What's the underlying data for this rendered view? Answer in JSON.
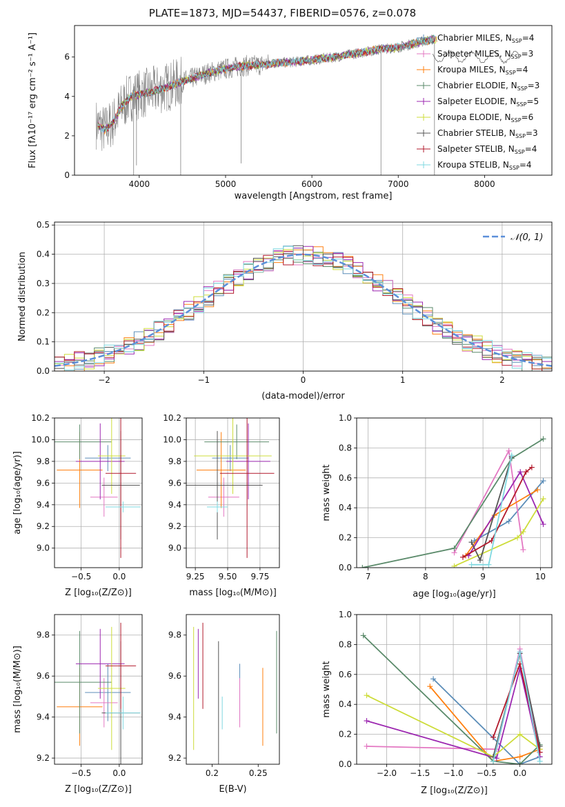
{
  "figure": {
    "title": "PLATE=1873, MJD=54437, FIBERID=0576, z=0.078"
  },
  "colors": {
    "chabrier_miles": "#5b8db8",
    "salpeter_miles": "#e377c2",
    "kroupa_miles": "#ff7f0e",
    "chabrier_elodie": "#5a8a6a",
    "salpeter_elodie": "#9c27b0",
    "kroupa_elodie": "#cddc39",
    "chabrier_stelib": "#555555",
    "salpeter_stelib": "#b2182b",
    "kroupa_stelib": "#7fd8e0",
    "normal": "#5b8fd9",
    "grid": "#b0b0b0"
  },
  "chart_data": [
    {
      "id": "spectrum",
      "type": "line",
      "xlabel": "wavelength [Angstrom, rest frame]",
      "ylabel": "Flux [fλ10⁻¹⁷ erg cm⁻² s⁻¹ A⁻¹]",
      "xlim": [
        3250,
        8780
      ],
      "ylim": [
        0,
        7.6
      ],
      "xticks": [
        4000,
        5000,
        6000,
        7000,
        8000
      ],
      "yticks": [
        0,
        2,
        4,
        6
      ],
      "grid": false,
      "legend_position": "top-right",
      "legend": [
        {
          "label": "Chabrier MILES, N",
          "sub": "SSP",
          "tail": "=4",
          "color": "chabrier_miles"
        },
        {
          "label": "Salpeter MILES, N",
          "sub": "SSP",
          "tail": "=3",
          "color": "salpeter_miles"
        },
        {
          "label": "Kroupa MILES, N",
          "sub": "SSP",
          "tail": "=4",
          "color": "kroupa_miles"
        },
        {
          "label": "Chabrier ELODIE, N",
          "sub": "SSP",
          "tail": "=3",
          "color": "chabrier_elodie"
        },
        {
          "label": "Salpeter ELODIE, N",
          "sub": "SSP",
          "tail": "=5",
          "color": "salpeter_elodie"
        },
        {
          "label": "Kroupa ELODIE, N",
          "sub": "SSP",
          "tail": "=6",
          "color": "kroupa_elodie"
        },
        {
          "label": "Chabrier STELIB, N",
          "sub": "SSP",
          "tail": "=3",
          "color": "chabrier_stelib"
        },
        {
          "label": "Salpeter STELIB, N",
          "sub": "SSP",
          "tail": "=4",
          "color": "salpeter_stelib"
        },
        {
          "label": "Kroupa STELIB, N",
          "sub": "SSP",
          "tail": "=4",
          "color": "kroupa_stelib"
        }
      ],
      "continuum": {
        "wavelength": [
          3500,
          3600,
          3700,
          3800,
          3900,
          4000,
          4200,
          4400,
          4600,
          4800,
          5000,
          5200,
          5400,
          5600,
          5800,
          6000,
          6200,
          6400,
          6600,
          6800,
          7000,
          7200,
          7400
        ],
        "flux": [
          2.6,
          2.3,
          2.7,
          3.5,
          4.0,
          4.1,
          4.3,
          4.6,
          4.9,
          5.2,
          5.4,
          5.55,
          5.6,
          5.7,
          5.75,
          5.85,
          5.95,
          6.1,
          6.25,
          6.4,
          6.5,
          6.7,
          6.9
        ]
      }
    },
    {
      "id": "residuals",
      "type": "area",
      "xlabel": "(data-model)/error",
      "ylabel": "Normed distribution",
      "xlim": [
        -2.5,
        2.5
      ],
      "ylim": [
        0,
        0.51
      ],
      "xticks": [
        -2,
        -1,
        0,
        1,
        2
      ],
      "yticks": [
        0.0,
        0.1,
        0.2,
        0.3,
        0.4,
        0.5
      ],
      "grid": true,
      "legend_position": "top-right",
      "legend_label": "𝒩(0, 1)",
      "bin_width": 0.1,
      "bin_start": -2.5
    },
    {
      "id": "age_vs_z",
      "type": "scatter",
      "xlabel": "Z [log₁₀(Z/Z⊙)]",
      "ylabel": "age  [log₁₀(age/yr)]",
      "xlim": [
        -0.85,
        0.3
      ],
      "ylim": [
        8.82,
        10.2
      ],
      "xticks": [
        -0.5,
        0.0
      ],
      "yticks": [
        9.0,
        9.2,
        9.4,
        9.6,
        9.8,
        10.0,
        10.2
      ],
      "grid": true
    },
    {
      "id": "age_vs_mass",
      "type": "scatter",
      "xlabel": "mass [log₁₀(M/M⊙)]",
      "ylabel": "",
      "xlim": [
        9.18,
        9.9
      ],
      "ylim": [
        8.82,
        10.2
      ],
      "xticks": [
        9.25,
        9.5,
        9.75
      ],
      "yticks": [
        9.0,
        9.2,
        9.4,
        9.6,
        9.8,
        10.0,
        10.2
      ],
      "grid": true
    },
    {
      "id": "weight_vs_age",
      "type": "line",
      "xlabel": "age  [log₁₀(age/yr)]",
      "ylabel": "mass weight",
      "xlim": [
        6.8,
        10.2
      ],
      "ylim": [
        0,
        1.0
      ],
      "xticks": [
        7,
        8,
        9,
        10
      ],
      "yticks": [
        0.0,
        0.2,
        0.4,
        0.6,
        0.8,
        1.0
      ],
      "grid": true,
      "series": [
        {
          "color": "chabrier_miles",
          "x": [
            8.85,
            9.45,
            10.05
          ],
          "y": [
            0.18,
            0.31,
            0.58
          ]
        },
        {
          "color": "salpeter_miles",
          "x": [
            8.5,
            9.45,
            9.7
          ],
          "y": [
            0.1,
            0.78,
            0.12
          ]
        },
        {
          "color": "kroupa_miles",
          "x": [
            8.7,
            9.2,
            9.95
          ],
          "y": [
            0.08,
            0.35,
            0.52
          ]
        },
        {
          "color": "chabrier_elodie",
          "x": [
            6.9,
            8.5,
            9.5,
            10.05
          ],
          "y": [
            0.0,
            0.13,
            0.73,
            0.86
          ]
        },
        {
          "color": "salpeter_elodie",
          "x": [
            8.75,
            9.65,
            10.05
          ],
          "y": [
            0.08,
            0.64,
            0.29
          ]
        },
        {
          "color": "kroupa_elodie",
          "x": [
            8.5,
            9.6,
            9.7,
            10.05
          ],
          "y": [
            0.01,
            0.2,
            0.24,
            0.46
          ]
        },
        {
          "color": "chabrier_stelib",
          "x": [
            8.8,
            8.95,
            9.5
          ],
          "y": [
            0.17,
            0.05,
            0.74
          ]
        },
        {
          "color": "salpeter_stelib",
          "x": [
            8.65,
            9.15,
            9.75,
            9.85
          ],
          "y": [
            0.07,
            0.18,
            0.64,
            0.67
          ]
        },
        {
          "color": "kroupa_stelib",
          "x": [
            8.8,
            9.1,
            9.5
          ],
          "y": [
            0.02,
            0.02,
            0.75
          ]
        }
      ]
    },
    {
      "id": "mass_vs_z",
      "type": "scatter",
      "xlabel": "Z [log₁₀(Z/Z⊙)]",
      "ylabel": "mass [log₁₀(M/M⊙)]",
      "xlim": [
        -0.85,
        0.3
      ],
      "ylim": [
        9.17,
        9.9
      ],
      "xticks": [
        -0.5,
        0.0
      ],
      "yticks": [
        9.2,
        9.4,
        9.6,
        9.8
      ],
      "grid": true
    },
    {
      "id": "mass_vs_ebv",
      "type": "scatter",
      "xlabel": "E(B-V)",
      "ylabel": "",
      "xlim": [
        0.172,
        0.273
      ],
      "ylim": [
        9.17,
        9.9
      ],
      "xticks": [
        0.2,
        0.25
      ],
      "yticks": [
        9.2,
        9.4,
        9.6,
        9.8
      ],
      "grid": false
    },
    {
      "id": "weight_vs_z",
      "type": "line",
      "xlabel": "Z [log₁₀(Z/Z⊙)]",
      "ylabel": "mass weight",
      "xlim": [
        -2.45,
        0.48
      ],
      "ylim": [
        0,
        1.0
      ],
      "xticks": [
        -2.0,
        -1.5,
        -1.0,
        -0.5,
        0.0
      ],
      "yticks": [
        0.0,
        0.2,
        0.4,
        0.6,
        0.8,
        1.0
      ],
      "grid": true,
      "series": [
        {
          "color": "chabrier_miles",
          "x": [
            -1.3,
            0.0,
            0.3
          ],
          "y": [
            0.57,
            0.0,
            0.05
          ]
        },
        {
          "color": "salpeter_miles",
          "x": [
            -2.3,
            -0.35,
            0.0,
            0.3
          ],
          "y": [
            0.12,
            0.1,
            0.77,
            0.08
          ]
        },
        {
          "color": "kroupa_miles",
          "x": [
            -1.35,
            -0.4,
            0.0,
            0.3
          ],
          "y": [
            0.52,
            0.02,
            0.05,
            0.1
          ]
        },
        {
          "color": "chabrier_elodie",
          "x": [
            -2.35,
            -0.4,
            0.0,
            0.3
          ],
          "y": [
            0.86,
            0.02,
            0.0,
            0.13
          ]
        },
        {
          "color": "salpeter_elodie",
          "x": [
            -2.3,
            -0.35,
            0.0,
            0.3
          ],
          "y": [
            0.29,
            0.04,
            0.64,
            0.05
          ]
        },
        {
          "color": "kroupa_elodie",
          "x": [
            -2.3,
            -0.4,
            0.0,
            0.3
          ],
          "y": [
            0.46,
            0.05,
            0.2,
            0.1
          ]
        },
        {
          "color": "chabrier_stelib",
          "x": [
            -0.4,
            0.0,
            0.3
          ],
          "y": [
            0.05,
            0.74,
            0.12
          ]
        },
        {
          "color": "salpeter_stelib",
          "x": [
            -0.4,
            0.0,
            0.3
          ],
          "y": [
            0.18,
            0.67,
            0.08
          ]
        },
        {
          "color": "kroupa_stelib",
          "x": [
            -0.4,
            0.0,
            0.3
          ],
          "y": [
            0.02,
            0.75,
            0.02
          ]
        }
      ]
    }
  ],
  "fits": [
    {
      "color": "chabrier_miles",
      "z": -0.15,
      "zerr": 0.3,
      "age": 9.83,
      "ageerr": 0.12,
      "mass": 9.52,
      "masserr": 0.14,
      "ebv": 0.23
    },
    {
      "color": "salpeter_miles",
      "z": -0.2,
      "zerr": 0.18,
      "age": 9.47,
      "ageerr": 0.18,
      "mass": 9.47,
      "masserr": 0.12,
      "ebv": 0.23
    },
    {
      "color": "kroupa_miles",
      "z": -0.52,
      "zerr": 0.3,
      "age": 9.72,
      "ageerr": 0.35,
      "mass": 9.45,
      "masserr": 0.19,
      "ebv": 0.255
    },
    {
      "color": "chabrier_elodie",
      "z": -0.52,
      "zerr": 0.42,
      "age": 9.98,
      "ageerr": 0.16,
      "mass": 9.57,
      "masserr": 0.25,
      "ebv": 0.27
    },
    {
      "color": "salpeter_elodie",
      "z": -0.25,
      "zerr": 0.32,
      "age": 9.8,
      "ageerr": 0.35,
      "mass": 9.66,
      "masserr": 0.17,
      "ebv": 0.185
    },
    {
      "color": "kroupa_elodie",
      "z": -0.1,
      "zerr": 0.18,
      "age": 9.85,
      "ageerr": 0.35,
      "mass": 9.54,
      "masserr": 0.3,
      "ebv": 0.18
    },
    {
      "color": "chabrier_stelib",
      "z": 0.02,
      "zerr": 0.25,
      "age": 9.58,
      "ageerr": 0.5,
      "mass": 9.42,
      "masserr": 0.35,
      "ebv": 0.207
    },
    {
      "color": "salpeter_stelib",
      "z": 0.02,
      "zerr": 0.2,
      "age": 9.69,
      "ageerr": 0.78,
      "mass": 9.65,
      "masserr": 0.21,
      "ebv": 0.19
    },
    {
      "color": "kroupa_stelib",
      "z": 0.05,
      "zerr": 0.23,
      "age": 9.38,
      "ageerr": 0.05,
      "mass": 9.42,
      "masserr": 0.08,
      "ebv": 0.211
    }
  ]
}
